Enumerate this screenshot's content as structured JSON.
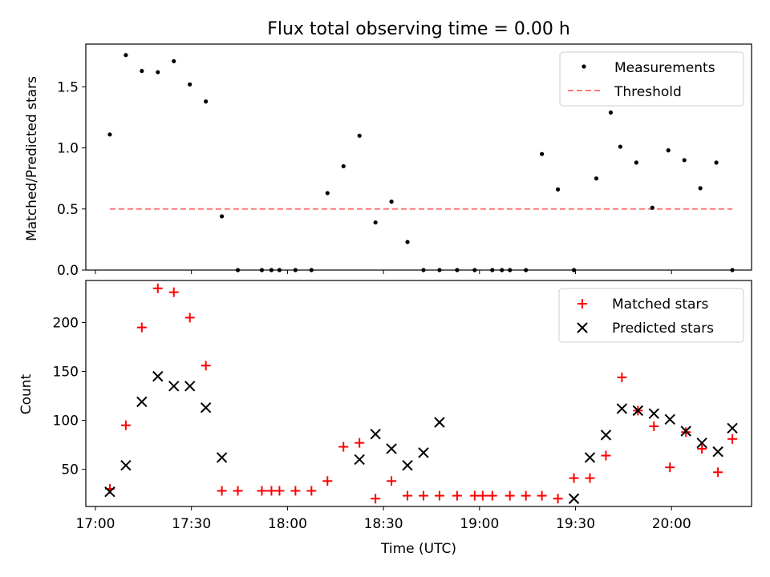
{
  "chart_data": [
    {
      "type": "scatter",
      "title": "Flux total observing time = 0.00 h",
      "xlabel": "",
      "ylabel": "Matched/Predicted stars",
      "xlim_minutes": [
        1017,
        1225
      ],
      "ylim": [
        0,
        1.85
      ],
      "yticks": [
        0.0,
        0.5,
        1.0,
        1.5
      ],
      "ytick_labels": [
        "0.0",
        "0.5",
        "1.0",
        "1.5"
      ],
      "legend_position": "top-right",
      "threshold": {
        "name": "Threshold",
        "value": 0.5,
        "x_start": 1024.5,
        "x_end": 1219,
        "color": "#ff7777"
      },
      "series": [
        {
          "name": "Measurements",
          "color": "#000000",
          "x": [
            1024.5,
            1029.5,
            1034.5,
            1039.5,
            1044.5,
            1049.5,
            1054.5,
            1059.5,
            1064.5,
            1072,
            1075,
            1077.5,
            1082.5,
            1087.5,
            1092.5,
            1097.5,
            1102.5,
            1107.5,
            1112.5,
            1117.5,
            1122.5,
            1127.5,
            1133,
            1138.5,
            1144,
            1147,
            1149.5,
            1154.5,
            1159.5,
            1164.5,
            1169.5,
            1176.5,
            1181,
            1184,
            1189,
            1194,
            1199,
            1204,
            1209,
            1214,
            1219
          ],
          "y": [
            1.11,
            1.76,
            1.63,
            1.62,
            1.71,
            1.52,
            1.38,
            0.44,
            0.0,
            0.0,
            0.0,
            0.0,
            0.0,
            0.0,
            0.63,
            0.85,
            1.1,
            0.39,
            0.56,
            0.23,
            0.0,
            0.0,
            0.0,
            0.0,
            0.0,
            0.0,
            0.0,
            0.0,
            0.95,
            0.66,
            0.0,
            0.75,
            1.29,
            1.01,
            0.88,
            0.51,
            0.98,
            0.9,
            0.67,
            0.88,
            0.0
          ]
        }
      ]
    },
    {
      "type": "scatter",
      "title": "",
      "xlabel": "Time (UTC)",
      "ylabel": "Count",
      "xlim_minutes": [
        1017,
        1225
      ],
      "ylim": [
        12,
        243
      ],
      "yticks": [
        50,
        100,
        150,
        200
      ],
      "ytick_labels": [
        "50",
        "100",
        "150",
        "200"
      ],
      "xticks_minutes": [
        1020,
        1050,
        1080,
        1110,
        1140,
        1170,
        1200
      ],
      "xtick_labels": [
        "17:00",
        "17:30",
        "18:00",
        "18:30",
        "19:00",
        "19:30",
        "20:00"
      ],
      "legend_position": "top-right",
      "series": [
        {
          "name": "Matched stars",
          "marker": "plus",
          "color": "#ff0000",
          "x": [
            1024.5,
            1029.5,
            1034.5,
            1039.5,
            1044.5,
            1049.5,
            1054.5,
            1059.5,
            1064.5,
            1072,
            1075,
            1077.5,
            1082.5,
            1087.5,
            1092.5,
            1097.5,
            1102.5,
            1107.5,
            1112.5,
            1117.5,
            1122.5,
            1127.5,
            1133,
            1138.5,
            1141,
            1144,
            1149.5,
            1154.5,
            1159.5,
            1164.5,
            1169.5,
            1174.5,
            1179.5,
            1184.5,
            1189.5,
            1194.5,
            1199.5,
            1204.5,
            1209.5,
            1214.5,
            1219
          ],
          "y": [
            30,
            95,
            195,
            235,
            231,
            205,
            156,
            28,
            28,
            28,
            28,
            28,
            28,
            28,
            38,
            73,
            77,
            20,
            38,
            23,
            23,
            23,
            23,
            23,
            23,
            23,
            23,
            23,
            23,
            20,
            41,
            41,
            64,
            144,
            110,
            94,
            52,
            88,
            71,
            47,
            81
          ]
        },
        {
          "name": "Predicted stars",
          "marker": "x",
          "color": "#000000",
          "x": [
            1024.5,
            1029.5,
            1034.5,
            1039.5,
            1044.5,
            1049.5,
            1054.5,
            1059.5,
            1102.5,
            1107.5,
            1112.5,
            1117.5,
            1122.5,
            1127.5,
            1169.5,
            1174.5,
            1179.5,
            1184.5,
            1189.5,
            1194.5,
            1199.5,
            1204.5,
            1209.5,
            1214.5,
            1219
          ],
          "y": [
            27,
            54,
            119,
            145,
            135,
            135,
            113,
            62,
            60,
            86,
            71,
            54,
            67,
            98,
            20,
            62,
            85,
            112,
            110,
            107,
            101,
            89,
            77,
            68,
            92
          ]
        }
      ]
    }
  ]
}
